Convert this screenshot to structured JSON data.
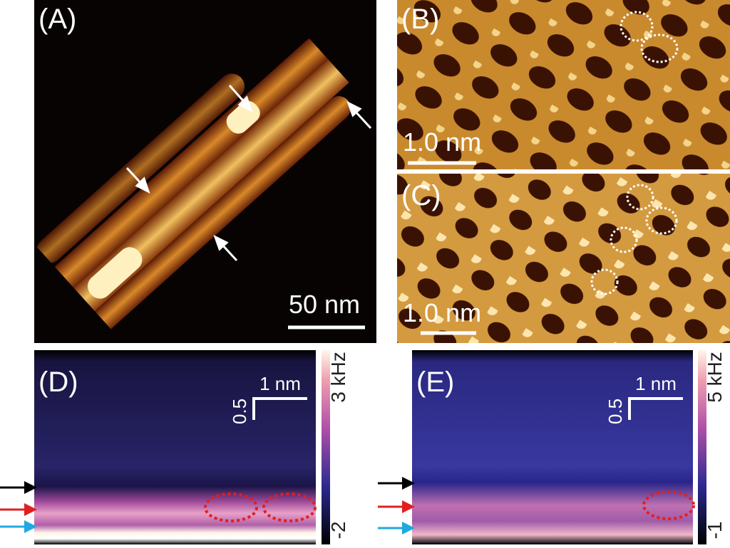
{
  "panels": [
    {
      "label": "(A)",
      "scale_bar": "50 nm"
    },
    {
      "label": "(B)",
      "scale_bar": "1.0 nm"
    },
    {
      "label": "(C)",
      "scale_bar": "1.0 nm"
    },
    {
      "label": "(D)",
      "scale_x": "1 nm",
      "scale_y": "0.5",
      "colorbar_max": "3 kHz",
      "colorbar_min": "-2"
    },
    {
      "label": "(E)",
      "scale_x": "1 nm",
      "scale_y": "0.5",
      "colorbar_max": "5 kHz",
      "colorbar_min": "-1"
    }
  ]
}
